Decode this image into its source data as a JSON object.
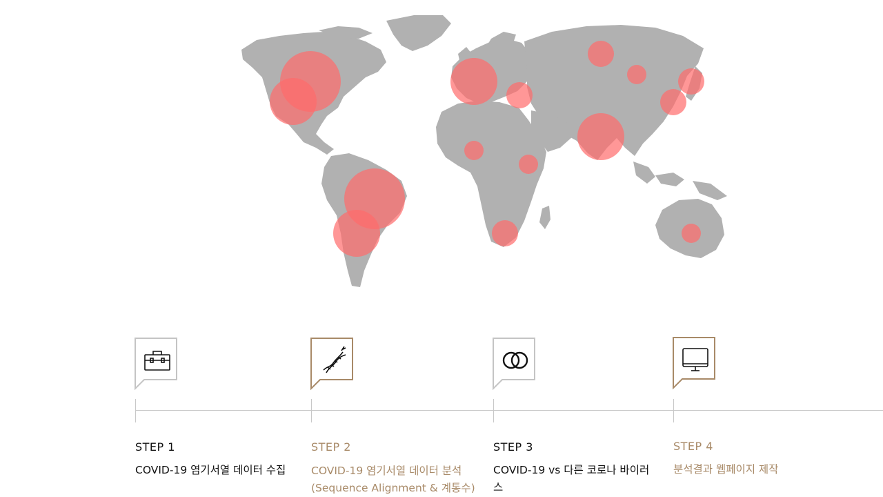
{
  "colors": {
    "land": "#b1b1b1",
    "hotspot": "#ff6b6b",
    "active_step": "#a88a68",
    "inactive_frame": "#c4c4c4",
    "text_dark": "#111111"
  },
  "steps": [
    {
      "label": "STEP 1",
      "desc_line1": "COVID-19 염기서열 데이터 수집",
      "desc_line2": "",
      "icon": "toolbox-icon",
      "active": false
    },
    {
      "label": "STEP 2",
      "desc_line1": "COVID-19 염기서열 데이터 분석",
      "desc_line2": "(Sequence Alignment & 계통수)",
      "icon": "dna-icon",
      "active": true
    },
    {
      "label": "STEP 3",
      "desc_line1": "COVID-19 vs 다른 코로나 바이러",
      "desc_line2": "스",
      "icon": "overlapping-circles-icon",
      "active": false
    },
    {
      "label": "STEP 4",
      "desc_line1": "분석결과 웹페이지 제작",
      "desc_line2": "",
      "icon": "monitor-icon",
      "active": true
    }
  ]
}
